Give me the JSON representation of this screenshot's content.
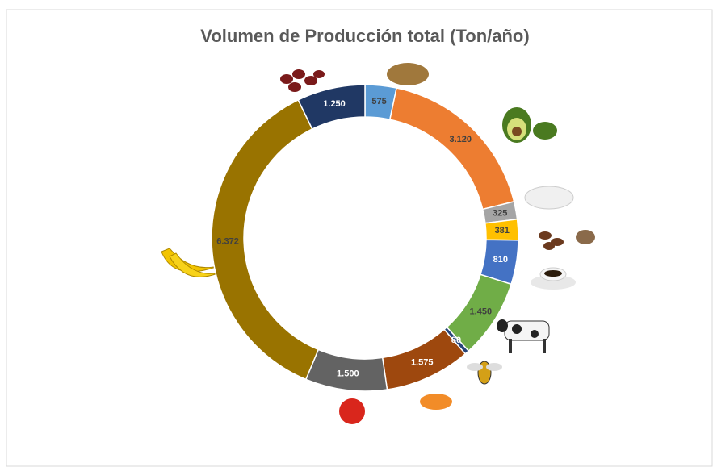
{
  "chart_data": {
    "type": "donut",
    "title": "Volumen de Producción total (Ton/año)",
    "series": [
      {
        "values": [
          575,
          3120,
          325,
          381,
          810,
          1450,
          80,
          1575,
          1500,
          6372,
          1250
        ],
        "value_labels": [
          "575",
          "3.120",
          "325",
          "381",
          "810",
          "1.450",
          "80",
          "1.575",
          "1.500",
          "6.372",
          "1.250"
        ],
        "colors": [
          "#5b9bd5",
          "#ed7d31",
          "#a5a5a5",
          "#ffc000",
          "#4472c4",
          "#70ad47",
          "#264478",
          "#9e480e",
          "#636363",
          "#997300",
          "#203864"
        ]
      }
    ]
  }
}
